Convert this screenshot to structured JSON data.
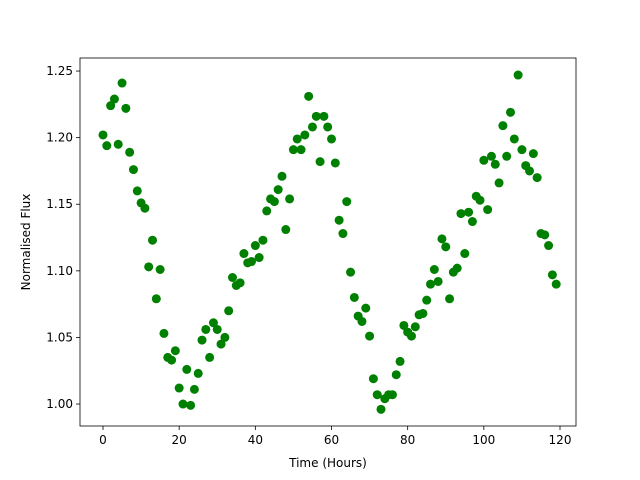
{
  "chart_data": {
    "type": "scatter",
    "x_label": "Time (Hours)",
    "y_label": "Normalised Flux",
    "color": "#008000",
    "x": [
      0,
      1,
      2,
      3,
      4,
      5,
      6,
      7,
      8,
      9,
      10,
      11,
      12,
      13,
      14,
      15,
      16,
      17,
      18,
      19,
      20,
      21,
      22,
      23,
      24,
      25,
      26,
      27,
      28,
      29,
      30,
      31,
      32,
      33,
      34,
      35,
      36,
      37,
      38,
      39,
      40,
      41,
      42,
      43,
      44,
      45,
      46,
      47,
      48,
      49,
      50,
      51,
      52,
      53,
      54,
      55,
      56,
      57,
      58,
      59,
      60,
      61,
      62,
      63,
      64,
      65,
      66,
      67,
      68,
      69,
      70,
      71,
      72,
      73,
      74,
      75,
      76,
      77,
      78,
      79,
      80,
      81,
      82,
      83,
      84,
      85,
      86,
      87,
      88,
      89,
      90,
      91,
      92,
      93,
      94,
      95,
      96,
      97,
      98,
      99,
      100,
      101,
      102,
      103,
      104,
      105,
      106,
      107,
      108,
      109,
      110,
      111,
      112,
      113,
      114,
      115,
      116,
      117,
      118,
      119
    ],
    "values": [
      1.202,
      1.194,
      1.224,
      1.229,
      1.195,
      1.241,
      1.222,
      1.189,
      1.176,
      1.16,
      1.151,
      1.147,
      1.103,
      1.123,
      1.079,
      1.101,
      1.053,
      1.035,
      1.033,
      1.04,
      1.012,
      1.0,
      1.026,
      0.999,
      1.011,
      1.023,
      1.048,
      1.056,
      1.035,
      1.061,
      1.056,
      1.045,
      1.05,
      1.07,
      1.095,
      1.089,
      1.091,
      1.113,
      1.106,
      1.107,
      1.119,
      1.11,
      1.123,
      1.145,
      1.154,
      1.152,
      1.161,
      1.171,
      1.131,
      1.154,
      1.191,
      1.199,
      1.191,
      1.202,
      1.231,
      1.208,
      1.216,
      1.182,
      1.216,
      1.208,
      1.199,
      1.181,
      1.138,
      1.128,
      1.152,
      1.099,
      1.08,
      1.066,
      1.062,
      1.072,
      1.051,
      1.019,
      1.007,
      0.996,
      1.004,
      1.007,
      1.007,
      1.022,
      1.032,
      1.059,
      1.054,
      1.051,
      1.058,
      1.067,
      1.068,
      1.078,
      1.09,
      1.101,
      1.092,
      1.124,
      1.118,
      1.079,
      1.099,
      1.102,
      1.143,
      1.113,
      1.144,
      1.137,
      1.156,
      1.153,
      1.183,
      1.146,
      1.186,
      1.18,
      1.166,
      1.209,
      1.186,
      1.219,
      1.199,
      1.247,
      1.191,
      1.179,
      1.175,
      1.188,
      1.17,
      1.128,
      1.127,
      1.119,
      1.097,
      1.09
    ],
    "xlim": [
      -6.04,
      124.2
    ],
    "ylim": [
      0.9835,
      1.2598
    ],
    "xticks": [
      0,
      20,
      40,
      60,
      80,
      100,
      120
    ],
    "yticks": [
      {
        "value": 1,
        "label": "1.00"
      },
      1.05,
      {
        "value": 1.1,
        "label": "1.10"
      },
      1.15,
      {
        "value": 1.2,
        "label": "1.20"
      },
      1.25
    ]
  }
}
